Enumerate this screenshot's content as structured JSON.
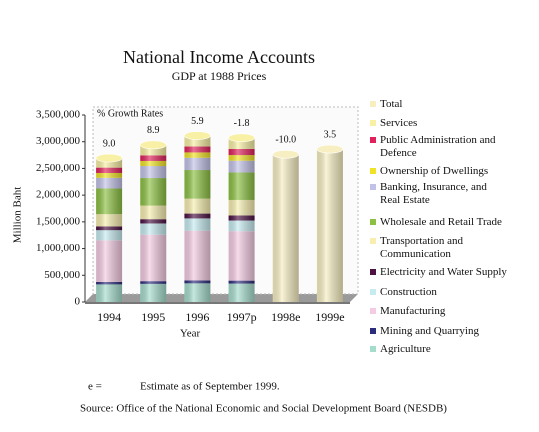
{
  "chart_data": {
    "type": "stacked-cylinder",
    "title": "National Income Accounts",
    "subtitle": "GDP at 1988 Prices",
    "y_axis_label": "Million Baht",
    "x_axis_label": "Year",
    "categories": [
      "1994",
      "1995",
      "1996",
      "1997p",
      "1998e",
      "1999e"
    ],
    "ylim": [
      0,
      3500000
    ],
    "yticks": [
      0,
      {
        "value": 500000,
        "label": "500,000"
      },
      {
        "value": 1000000,
        "label": "1,000,000"
      },
      {
        "value": 1500000,
        "label": "1,500,000"
      },
      {
        "value": 2000000,
        "label": "2,000,000"
      },
      {
        "value": 2500000,
        "label": "2,500,000"
      },
      {
        "value": 3000000,
        "label": "3,000,000"
      },
      {
        "value": 3500000,
        "label": "3,500,000"
      }
    ],
    "growth_title": "% Growth Rates",
    "growth_rates": {
      "values": [
        9,
        8.9,
        5.9,
        -1.8,
        -10,
        3.5
      ],
      "value_labels": [
        "9.0",
        "8.9",
        "5.9",
        "-1.8",
        "-10.0",
        "3.5"
      ]
    },
    "series": [
      {
        "name": "Agriculture",
        "color": "#a6dccc",
        "values": [
          330000,
          340000,
          350000,
          345000,
          null,
          null
        ]
      },
      {
        "name": "Mining and Quarrying",
        "color": "#2c2c7c",
        "values": [
          45000,
          50000,
          55000,
          55000,
          null,
          null
        ]
      },
      {
        "name": "Manufacturing",
        "color": "#f3cbe2",
        "values": [
          780000,
          870000,
          930000,
          925000,
          null,
          null
        ]
      },
      {
        "name": "Construction",
        "color": "#c6ebf0",
        "values": [
          190000,
          210000,
          230000,
          200000,
          null,
          null
        ]
      },
      {
        "name": "Electricity and Water Supply",
        "color": "#4c1244",
        "values": [
          70000,
          80000,
          90000,
          95000,
          null,
          null
        ]
      },
      {
        "name": "Transportation and Communication",
        "color": "#f7eeb0",
        "values": [
          230000,
          255000,
          280000,
          290000,
          null,
          null
        ]
      },
      {
        "name": "Wholesale and Retail Trade",
        "color": "#8cc043",
        "values": [
          480000,
          515000,
          535000,
          515000,
          null,
          null
        ]
      },
      {
        "name": "Banking, Insurance, and Real Estate",
        "color": "#c2c2e8",
        "values": [
          200000,
          225000,
          230000,
          220000,
          null,
          null
        ]
      },
      {
        "name": "Ownership of Dwellings",
        "color": "#f0e224",
        "values": [
          90000,
          95000,
          100000,
          105000,
          null,
          null
        ]
      },
      {
        "name": "Public Administration and Defence",
        "color": "#e0225c",
        "values": [
          100000,
          105000,
          110000,
          115000,
          null,
          null
        ]
      },
      {
        "name": "Services",
        "color": "#f8f0a4",
        "values": [
          179000,
          196000,
          205000,
          208000,
          null,
          null
        ]
      },
      {
        "name": "Total",
        "color": "#f7efc2",
        "values": [
          null,
          null,
          null,
          null,
          2765000,
          2862000
        ]
      }
    ],
    "footnote_key": "e =",
    "footnote_text": "Estimate as of September 1999.",
    "source": "Source: Office of the National Economic and Social Development Board (NESDB)"
  }
}
